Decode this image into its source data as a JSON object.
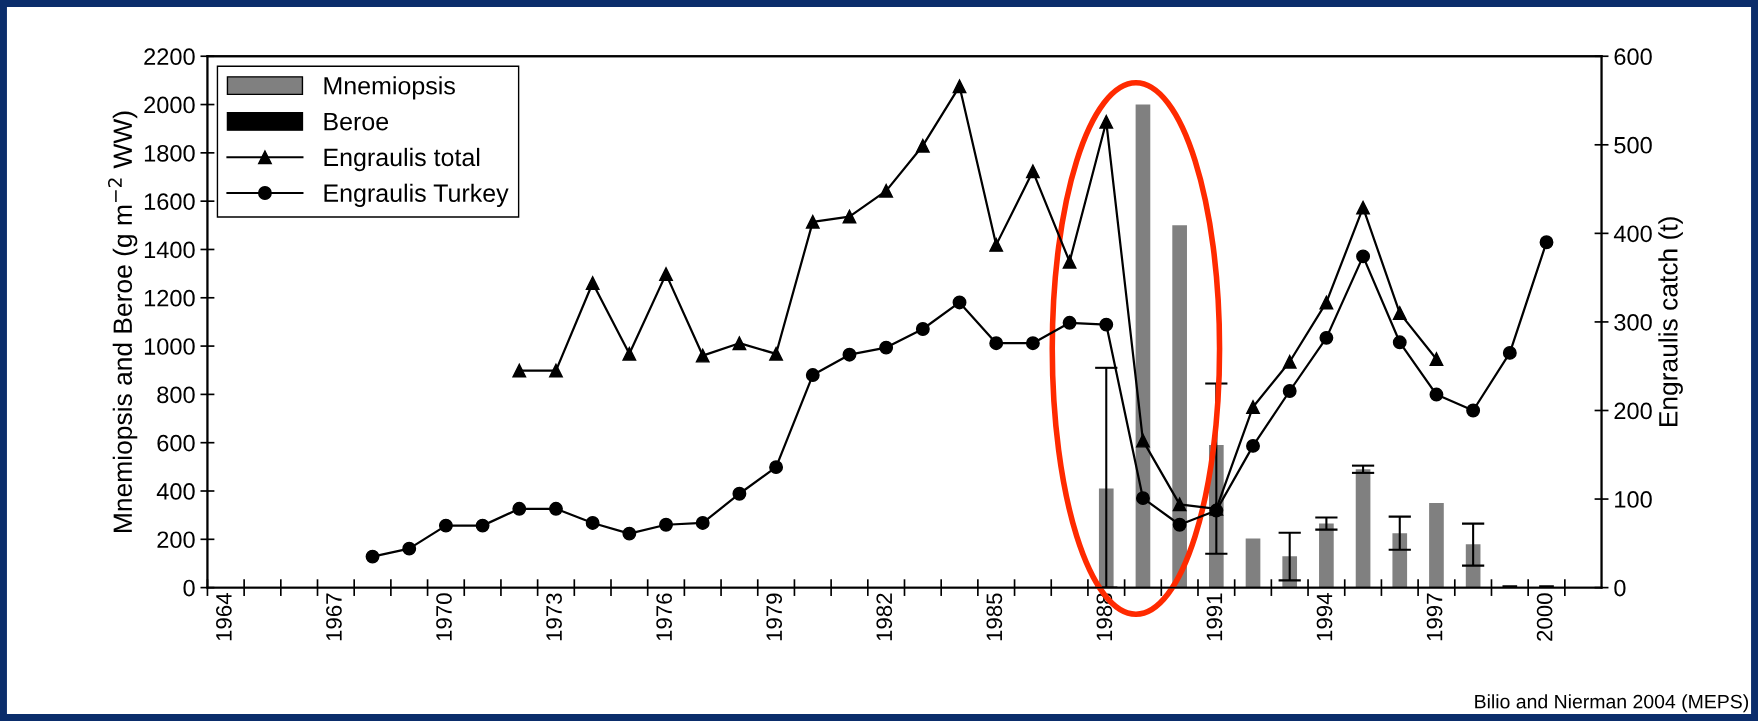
{
  "chart_data": {
    "type": "bar",
    "ylabel": "Mnemiopsis and Beroe (g m$^{−2}$ WW)",
    "y2label": "Engraulis catch (t)",
    "categories": [
      "1964",
      null,
      null,
      "1967",
      null,
      null,
      "1970",
      null,
      null,
      "1973",
      null,
      null,
      "1976",
      null,
      null,
      "1979",
      null,
      null,
      "1982",
      null,
      null,
      "1985",
      null,
      null,
      "1988",
      null,
      null,
      "1991",
      null,
      null,
      "1994",
      null,
      null,
      "1997",
      null,
      null,
      "2000",
      null
    ],
    "series": [
      {
        "name": "Mnemiopsis",
        "color": "#808080",
        "values": [
          null,
          null,
          null,
          null,
          null,
          null,
          null,
          null,
          null,
          null,
          null,
          null,
          null,
          null,
          null,
          null,
          null,
          null,
          null,
          null,
          null,
          null,
          null,
          null,
          410,
          2000,
          1500,
          590,
          203,
          130,
          265,
          490,
          225,
          350,
          180,
          null,
          null,
          null
        ],
        "errors": [
          null,
          null,
          null,
          null,
          null,
          null,
          null,
          null,
          null,
          null,
          null,
          null,
          null,
          null,
          null,
          null,
          null,
          null,
          null,
          null,
          null,
          null,
          null,
          null,
          [
            0,
            910
          ],
          null,
          null,
          [
            140,
            845
          ],
          null,
          [
            30,
            227
          ],
          25,
          15,
          [
            157,
            294
          ],
          null,
          [
            91,
            265
          ],
          null,
          null,
          null
        ]
      },
      {
        "name": "Beroe",
        "color": "#000000",
        "values": [
          null,
          null,
          null,
          null,
          null,
          null,
          null,
          null,
          null,
          null,
          null,
          null,
          null,
          null,
          null,
          null,
          null,
          null,
          null,
          null,
          null,
          null,
          null,
          null,
          null,
          null,
          null,
          null,
          null,
          null,
          null,
          null,
          null,
          null,
          null,
          10,
          10,
          null
        ]
      },
      {
        "name": "Engraulis total",
        "type": "line",
        "axis": "y2",
        "marker": "triangle",
        "color": "#000000",
        "values": [
          null,
          null,
          null,
          null,
          null,
          null,
          null,
          null,
          245,
          245,
          344,
          264,
          354,
          262,
          276,
          264,
          413,
          419,
          448,
          499,
          566,
          387,
          470,
          368,
          526,
          166,
          94,
          89,
          204,
          255,
          322,
          429,
          310,
          258,
          null,
          null,
          null,
          null
        ]
      },
      {
        "name": "Engraulis Turkey",
        "type": "line",
        "axis": "y2",
        "marker": "circle",
        "color": "#000000",
        "values": [
          null,
          null,
          null,
          null,
          35,
          44,
          70,
          70,
          89,
          89,
          73,
          61,
          71,
          73,
          106,
          136,
          240,
          263,
          271,
          292,
          322,
          276,
          276,
          299,
          297,
          101,
          71,
          87,
          160,
          222,
          282,
          374,
          277,
          218,
          200,
          265,
          390,
          null
        ]
      }
    ],
    "ylim": [
      0,
      2200
    ],
    "yticks": [
      0,
      200,
      400,
      600,
      800,
      1000,
      1200,
      1400,
      1600,
      1800,
      2000,
      2200
    ],
    "y2lim": [
      0,
      600
    ],
    "y2ticks": [
      0,
      100,
      200,
      300,
      400,
      500,
      600
    ],
    "legend": "top left",
    "grid": false,
    "annotations": [
      "Bilio and Nierman 2004 (MEPS)"
    ]
  }
}
